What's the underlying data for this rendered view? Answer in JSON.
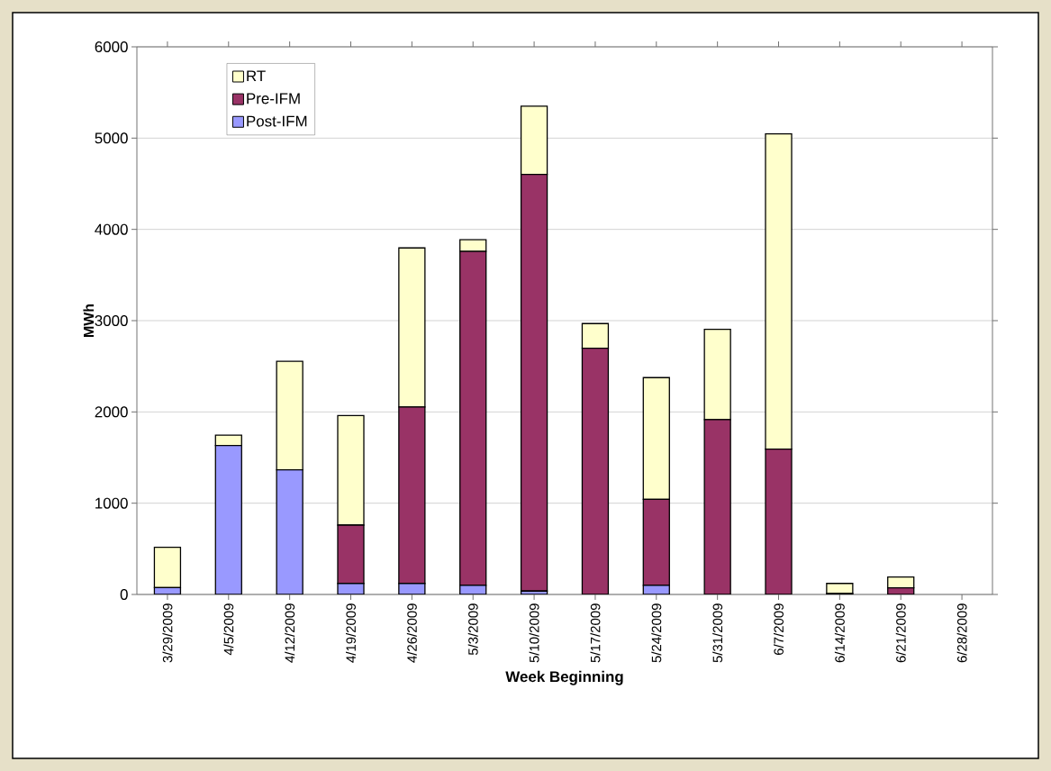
{
  "chart_data": {
    "type": "bar",
    "stacked": true,
    "categories": [
      "3/29/2009",
      "4/5/2009",
      "4/12/2009",
      "4/19/2009",
      "4/26/2009",
      "5/3/2009",
      "5/10/2009",
      "5/17/2009",
      "5/24/2009",
      "5/31/2009",
      "6/7/2009",
      "6/14/2009",
      "6/21/2009",
      "6/28/2009"
    ],
    "series": [
      {
        "name": "Post-IFM",
        "color": "#9999ff",
        "values": [
          76,
          1632,
          1365,
          121,
          121,
          99,
          37,
          0,
          99,
          0,
          0,
          0,
          0,
          0
        ]
      },
      {
        "name": "Pre-IFM",
        "color": "#993366",
        "values": [
          0,
          0,
          0,
          639,
          1932,
          3659,
          4566,
          2698,
          944,
          1915,
          1592,
          10,
          72,
          0
        ]
      },
      {
        "name": "RT",
        "color": "#ffffcc",
        "values": [
          440,
          113,
          1189,
          1201,
          1744,
          128,
          747,
          270,
          1333,
          990,
          3455,
          111,
          119,
          0
        ]
      }
    ],
    "ylim": [
      0,
      6000
    ],
    "yticks": [
      0,
      1000,
      2000,
      3000,
      4000,
      5000,
      6000
    ],
    "xlabel": "Week Beginning",
    "ylabel": "MWh",
    "grid": "y",
    "legend": "top left"
  }
}
